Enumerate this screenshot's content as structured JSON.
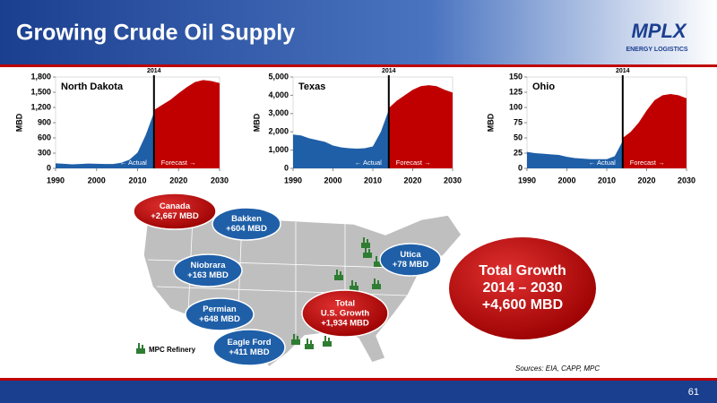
{
  "slide": {
    "title": "Growing Crude Oil Supply",
    "logo": {
      "name": "MPLX",
      "tagline": "ENERGY LOGISTICS"
    },
    "bubbles": [
      {
        "lines": [
          "Canada",
          "+2,667 MBD"
        ],
        "color": "#c00000"
      },
      {
        "lines": [
          "Bakken",
          "+604 MBD"
        ],
        "color": "#1f5fa8"
      },
      {
        "lines": [
          "Niobrara",
          "+163 MBD"
        ],
        "color": "#1f5fa8"
      },
      {
        "lines": [
          "Permian",
          "+648 MBD"
        ],
        "color": "#1f5fa8"
      },
      {
        "lines": [
          "Eagle Ford",
          "+411 MBD"
        ],
        "color": "#1f5fa8"
      },
      {
        "lines": [
          "Utica",
          "+78 MBD"
        ],
        "color": "#1f5fa8"
      },
      {
        "lines": [
          "Total",
          "U.S. Growth",
          "+1,934 MBD"
        ],
        "color": "#c00000"
      }
    ],
    "total": {
      "lines": [
        "Total Growth",
        "2014 – 2030",
        "+4,600 MBD"
      ]
    },
    "legend": "MPC Refinery",
    "sources": "Sources:  EIA, CAPP, MPC",
    "page": "61"
  },
  "chart_data": [
    {
      "type": "area",
      "title": "North Dakota",
      "y_label": "MBD",
      "marker": 2014,
      "x": [
        1990,
        1992,
        1994,
        1996,
        1998,
        2000,
        2002,
        2004,
        2006,
        2008,
        2010,
        2012,
        2014,
        2016,
        2018,
        2020,
        2022,
        2024,
        2026,
        2028,
        2030
      ],
      "xlim": [
        1990,
        2030
      ],
      "xticks": [
        1990,
        2000,
        2010,
        2020,
        2030
      ],
      "ylim": [
        0,
        1800
      ],
      "yticks": [
        0,
        300,
        600,
        900,
        {
          "value": 1200,
          "label": "1,200"
        },
        {
          "value": 1500,
          "label": "1,500"
        },
        {
          "value": 1800,
          "label": "1,800"
        }
      ],
      "series": [
        {
          "name": "← Actual",
          "color": "#1f5fa8",
          "values": [
            100,
            90,
            80,
            85,
            95,
            90,
            85,
            85,
            110,
            170,
            310,
            660,
            1100,
            null,
            null,
            null,
            null,
            null,
            null,
            null,
            null
          ]
        },
        {
          "name": "Forecast →",
          "color": "#c00000",
          "values": [
            null,
            null,
            null,
            null,
            null,
            null,
            null,
            null,
            null,
            null,
            null,
            null,
            1150,
            1250,
            1350,
            1480,
            1600,
            1700,
            1740,
            1720,
            1680
          ]
        }
      ]
    },
    {
      "type": "area",
      "title": "Texas",
      "y_label": "MBD",
      "marker": 2014,
      "x": [
        1990,
        1992,
        1994,
        1996,
        1998,
        2000,
        2002,
        2004,
        2006,
        2008,
        2010,
        2012,
        2014,
        2016,
        2018,
        2020,
        2022,
        2024,
        2026,
        2028,
        2030
      ],
      "xlim": [
        1990,
        2030
      ],
      "xticks": [
        1990,
        2000,
        2010,
        2020,
        2030
      ],
      "ylim": [
        0,
        5000
      ],
      "yticks": [
        0,
        {
          "value": 1000,
          "label": "1,000"
        },
        {
          "value": 2000,
          "label": "2,000"
        },
        {
          "value": 3000,
          "label": "3,000"
        },
        {
          "value": 4000,
          "label": "4,000"
        },
        {
          "value": 5000,
          "label": "5,000"
        }
      ],
      "series": [
        {
          "name": "← Actual",
          "color": "#1f5fa8",
          "values": [
            1850,
            1800,
            1650,
            1550,
            1450,
            1250,
            1150,
            1100,
            1080,
            1100,
            1200,
            2000,
            3200,
            null,
            null,
            null,
            null,
            null,
            null,
            null,
            null
          ]
        },
        {
          "name": "Forecast →",
          "color": "#c00000",
          "values": [
            null,
            null,
            null,
            null,
            null,
            null,
            null,
            null,
            null,
            null,
            null,
            null,
            3300,
            3700,
            4000,
            4300,
            4500,
            4550,
            4500,
            4300,
            4150
          ]
        }
      ]
    },
    {
      "type": "area",
      "title": "Ohio",
      "y_label": "MBD",
      "marker": 2014,
      "x": [
        1990,
        1992,
        1994,
        1996,
        1998,
        2000,
        2002,
        2004,
        2006,
        2008,
        2010,
        2012,
        2014,
        2016,
        2018,
        2020,
        2022,
        2024,
        2026,
        2028,
        2030
      ],
      "xlim": [
        1990,
        2030
      ],
      "xticks": [
        1990,
        2000,
        2010,
        2020,
        2030
      ],
      "ylim": [
        0,
        150
      ],
      "yticks": [
        0,
        25,
        50,
        75,
        100,
        125,
        150
      ],
      "series": [
        {
          "name": "← Actual",
          "color": "#1f5fa8",
          "values": [
            27,
            25,
            24,
            23,
            22,
            19,
            17,
            16,
            15,
            15,
            15,
            20,
            45,
            null,
            null,
            null,
            null,
            null,
            null,
            null,
            null
          ]
        },
        {
          "name": "Forecast →",
          "color": "#c00000",
          "values": [
            null,
            null,
            null,
            null,
            null,
            null,
            null,
            null,
            null,
            null,
            null,
            null,
            50,
            60,
            75,
            95,
            112,
            120,
            122,
            120,
            115
          ]
        }
      ]
    }
  ]
}
